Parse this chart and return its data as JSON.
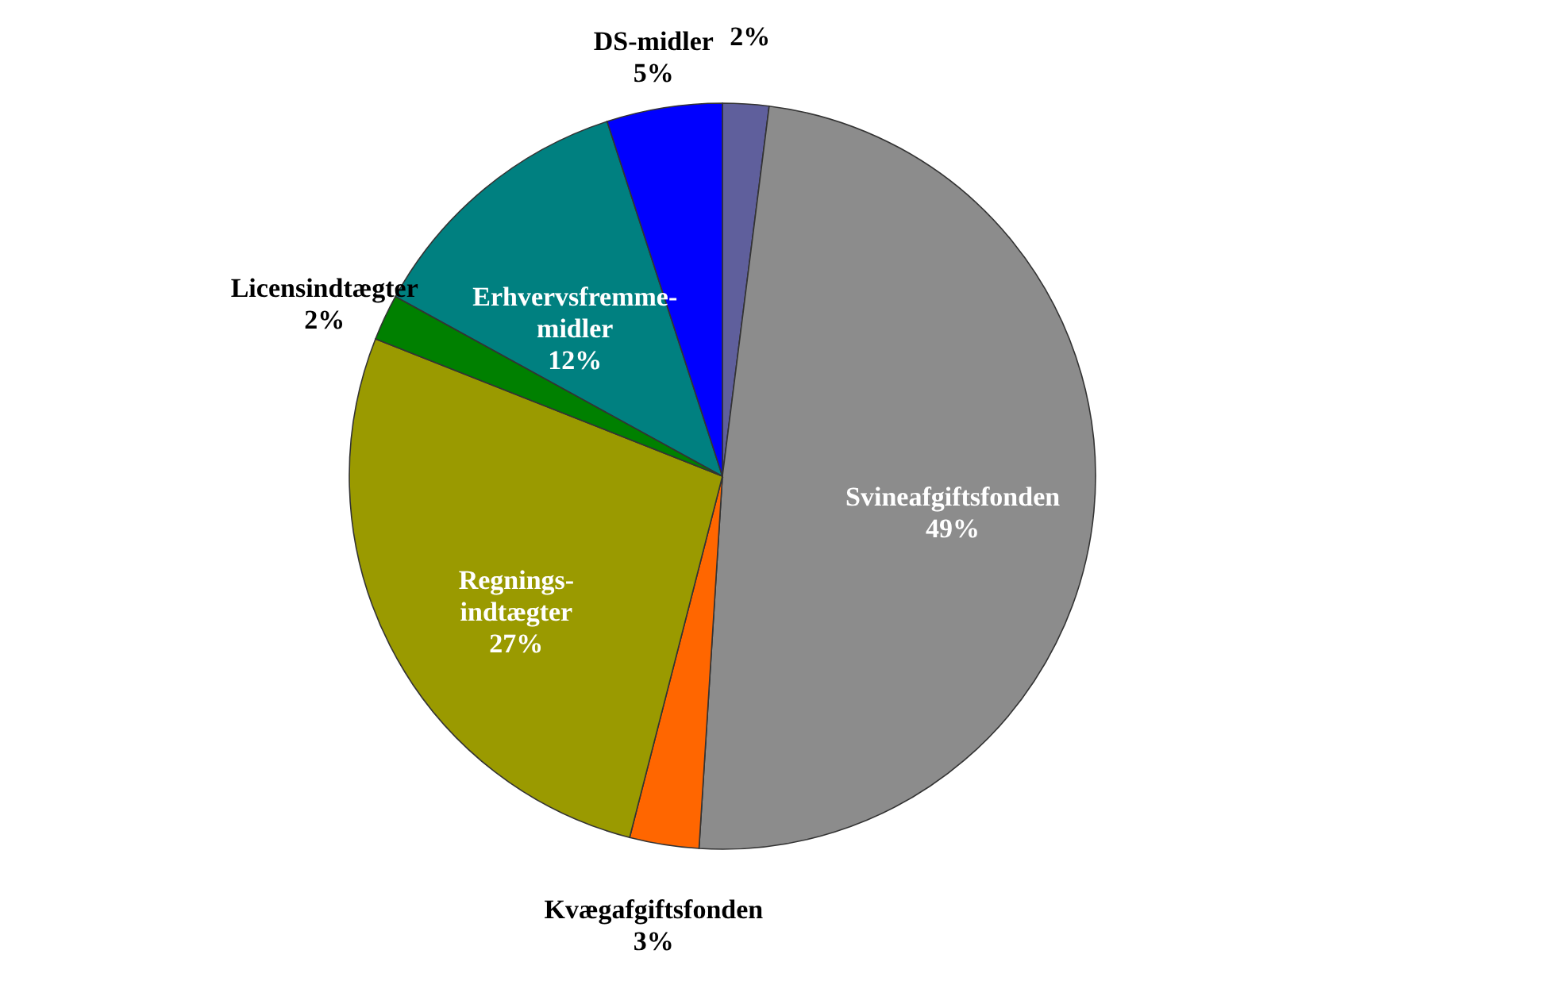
{
  "chart_data": {
    "type": "pie",
    "categories": [
      null,
      "Svineafgiftsfonden",
      "Kvægafgiftsfonden",
      "Regnings-\nindtægter",
      "Licensindtægter",
      "Erhvervsfremme-\nmidler",
      "DS-midler"
    ],
    "values": [
      2,
      49,
      3,
      27,
      2,
      12,
      5
    ],
    "value_labels": [
      "2%",
      "49%",
      "3%",
      "27%",
      "2%",
      "12%",
      "5%"
    ],
    "colors": [
      "#5f5f9c",
      "#8c8c8c",
      "#ff6600",
      "#9a9a00",
      "#008000",
      "#008080",
      "#0000ff"
    ],
    "legend": false
  }
}
